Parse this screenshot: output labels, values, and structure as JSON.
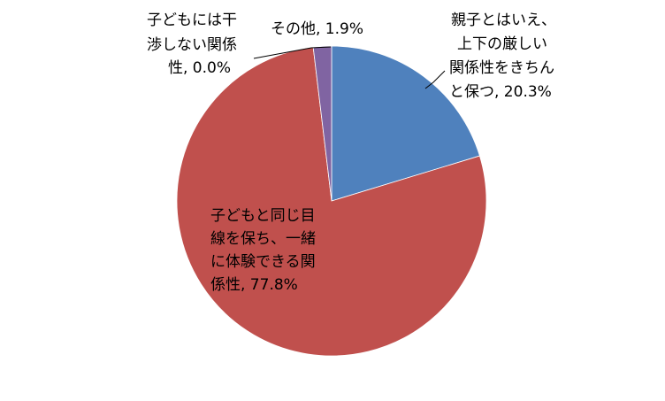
{
  "chart_data": {
    "type": "pie",
    "title": "",
    "start_angle_deg": 0,
    "direction": "clockwise",
    "legend": "none",
    "slices": [
      {
        "category": "親子とはいえ、上下の厳しい関係性をきちんと保つ",
        "value": 20.3,
        "color": "#4f81bd",
        "label_lines": [
          "親子とはいえ、",
          "上下の厳しい",
          "関係性をきちん",
          "と保つ, 20.3%"
        ]
      },
      {
        "category": "子どもと同じ目線を保ち、一緒に体験できる関係性",
        "value": 77.8,
        "color": "#c0504d",
        "label_lines": [
          "子どもと同じ目",
          "線を保ち、一緒",
          "に体験できる関",
          "係性, 77.8%"
        ]
      },
      {
        "category": "子どもには干渉しない関係性",
        "value": 0.0,
        "color": "#9bbb59",
        "label_lines": [
          "子どもには干",
          "渉しない関係",
          "性, 0.0%"
        ]
      },
      {
        "category": "その他",
        "value": 1.9,
        "color": "#8064a2",
        "label_lines": [
          "その他, 1.9%"
        ]
      }
    ]
  }
}
